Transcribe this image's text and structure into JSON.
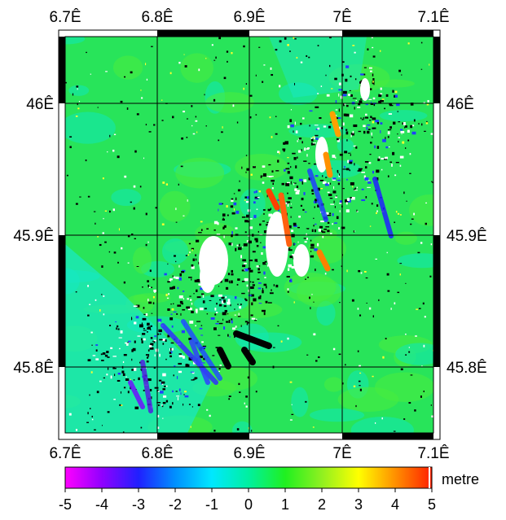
{
  "chart_data": {
    "type": "heatmap",
    "title": "",
    "x_ticks": [
      "6.7Ê",
      "6.8Ê",
      "6.9Ê",
      "7Ê",
      "7.1Ê"
    ],
    "y_ticks": [
      "46Ê",
      "45.9Ê",
      "45.8Ê"
    ],
    "colorbar": {
      "unit": "metre",
      "range": [
        -5,
        5
      ],
      "ticks": [
        "-5",
        "-4",
        "-3",
        "-2",
        "-1",
        "0",
        "1",
        "2",
        "3",
        "4",
        "5"
      ],
      "colors": [
        "#ff00ff",
        "#9000ff",
        "#2020ff",
        "#0090ff",
        "#00e8ff",
        "#00f0a0",
        "#20f020",
        "#90f020",
        "#ffff00",
        "#ff9000",
        "#ff2000"
      ]
    },
    "grid": true
  }
}
